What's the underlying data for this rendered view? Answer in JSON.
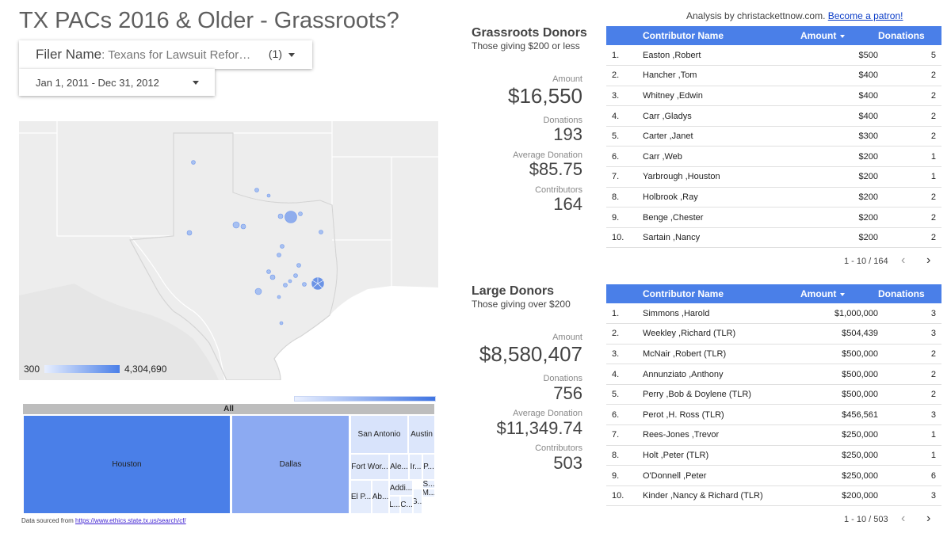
{
  "header": {
    "title": "TX PACs 2016 & Older - Grassroots?",
    "analysis_text": "Analysis by christackettnow.com.",
    "patron_link": "Become a patron!"
  },
  "filters": {
    "filer_label": "Filer Name",
    "filer_value": ": Texans for Lawsuit Reform ...",
    "filer_count": "(1)",
    "date_range": "Jan 1, 2011 - Dec 31, 2012"
  },
  "map": {
    "legend_min": "300",
    "legend_max": "4,304,690"
  },
  "treemap": {
    "root_label": "All",
    "cells": [
      {
        "label": "Houston"
      },
      {
        "label": "Dallas"
      },
      {
        "label": "San Antonio"
      },
      {
        "label": "Austin"
      },
      {
        "label": "Fort Wor..."
      },
      {
        "label": "Ale..."
      },
      {
        "label": "Ir..."
      },
      {
        "label": "P..."
      },
      {
        "label": "Addi..."
      },
      {
        "label": "S..."
      },
      {
        "label": "M..."
      },
      {
        "label": "El P..."
      },
      {
        "label": "Ab..."
      },
      {
        "label": "L..."
      },
      {
        "label": "C..."
      },
      {
        "label": "G..."
      }
    ]
  },
  "source": {
    "prefix": "Data sourced from",
    "link": "https://www.ethics.state.tx.us/search/cf/"
  },
  "grassroots": {
    "title": "Grassroots Donors",
    "subtitle": "Those giving $200 or less",
    "amount_label": "Amount",
    "amount": "$16,550",
    "donations_label": "Donations",
    "donations": "193",
    "avg_label": "Average Donation",
    "avg": "$85.75",
    "contributors_label": "Contributors",
    "contributors": "164",
    "table": {
      "headers": {
        "name": "Contributor Name",
        "amount": "Amount",
        "donations": "Donations"
      },
      "rows": [
        {
          "idx": "1.",
          "name": "Easton ,Robert",
          "amount": "$500",
          "donations": "5"
        },
        {
          "idx": "2.",
          "name": "Hancher ,Tom",
          "amount": "$400",
          "donations": "2"
        },
        {
          "idx": "3.",
          "name": "Whitney ,Edwin",
          "amount": "$400",
          "donations": "2"
        },
        {
          "idx": "4.",
          "name": "Carr ,Gladys",
          "amount": "$400",
          "donations": "2"
        },
        {
          "idx": "5.",
          "name": "Carter ,Janet",
          "amount": "$300",
          "donations": "2"
        },
        {
          "idx": "6.",
          "name": "Carr ,Web",
          "amount": "$200",
          "donations": "1"
        },
        {
          "idx": "7.",
          "name": "Yarbrough ,Houston",
          "amount": "$200",
          "donations": "1"
        },
        {
          "idx": "8.",
          "name": "Holbrook ,Ray",
          "amount": "$200",
          "donations": "2"
        },
        {
          "idx": "9.",
          "name": "Benge ,Chester",
          "amount": "$200",
          "donations": "2"
        },
        {
          "idx": "10.",
          "name": "Sartain ,Nancy",
          "amount": "$200",
          "donations": "2"
        }
      ],
      "pager": "1 - 10 / 164"
    }
  },
  "large": {
    "title": "Large Donors",
    "subtitle": "Those giving over $200",
    "amount_label": "Amount",
    "amount": "$8,580,407",
    "donations_label": "Donations",
    "donations": "756",
    "avg_label": "Average Donation",
    "avg": "$11,349.74",
    "contributors_label": "Contributors",
    "contributors": "503",
    "table": {
      "headers": {
        "name": "Contributor Name",
        "amount": "Amount",
        "donations": "Donations"
      },
      "rows": [
        {
          "idx": "1.",
          "name": "Simmons ,Harold",
          "amount": "$1,000,000",
          "donations": "3"
        },
        {
          "idx": "2.",
          "name": "Weekley ,Richard (TLR)",
          "amount": "$504,439",
          "donations": "3"
        },
        {
          "idx": "3.",
          "name": "McNair ,Robert (TLR)",
          "amount": "$500,000",
          "donations": "2"
        },
        {
          "idx": "4.",
          "name": "Annunziato ,Anthony",
          "amount": "$500,000",
          "donations": "2"
        },
        {
          "idx": "5.",
          "name": "Perry ,Bob & Doylene (TLR)",
          "amount": "$500,000",
          "donations": "2"
        },
        {
          "idx": "6.",
          "name": "Perot ,H. Ross (TLR)",
          "amount": "$456,561",
          "donations": "3"
        },
        {
          "idx": "7.",
          "name": "Rees-Jones ,Trevor",
          "amount": "$250,000",
          "donations": "1"
        },
        {
          "idx": "8.",
          "name": "Holt ,Peter (TLR)",
          "amount": "$250,000",
          "donations": "1"
        },
        {
          "idx": "9.",
          "name": "O'Donnell ,Peter",
          "amount": "$250,000",
          "donations": "6"
        },
        {
          "idx": "10.",
          "name": "Kinder ,Nancy & Richard (TLR)",
          "amount": "$200,000",
          "donations": "3"
        }
      ],
      "pager": "1 - 10 / 503"
    }
  }
}
